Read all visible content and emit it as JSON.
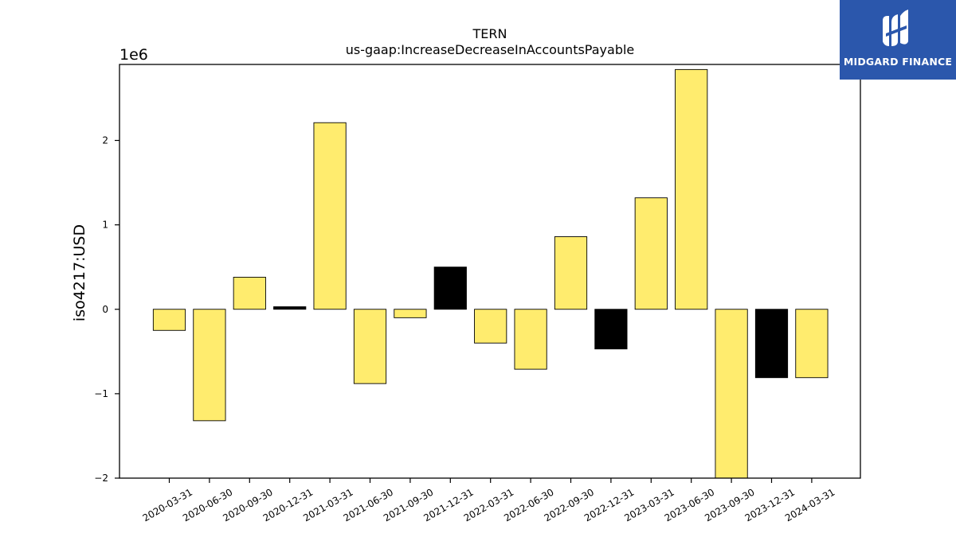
{
  "chart_data": {
    "type": "bar",
    "title": "TERN",
    "subtitle": "us-gaap:IncreaseDecreaseInAccountsPayable",
    "ylabel": "iso4217:USD",
    "y_scale_label": "1e6",
    "ylim": [
      -2.0,
      2.9
    ],
    "yticks": [
      -2,
      -1,
      0,
      1,
      2
    ],
    "ytick_labels": [
      "−2",
      "−1",
      "0",
      "1",
      "2"
    ],
    "grid": false,
    "categories": [
      "2020-03-31",
      "2020-06-30",
      "2020-09-30",
      "2020-12-31",
      "2021-03-31",
      "2021-06-30",
      "2021-09-30",
      "2021-12-31",
      "2022-03-31",
      "2022-06-30",
      "2022-09-30",
      "2022-12-31",
      "2023-03-31",
      "2023-06-30",
      "2023-09-30",
      "2023-12-31",
      "2024-03-31"
    ],
    "values": [
      -250000,
      -1320000,
      380000,
      30000,
      2210000,
      -880000,
      -100000,
      500000,
      -400000,
      -710000,
      860000,
      -470000,
      1320000,
      2840000,
      -2000000,
      -810000,
      -810000
    ],
    "bar_colors": [
      "#ffec6e",
      "#ffec6e",
      "#ffec6e",
      "#000000",
      "#ffec6e",
      "#ffec6e",
      "#ffec6e",
      "#000000",
      "#ffec6e",
      "#ffec6e",
      "#ffec6e",
      "#000000",
      "#ffec6e",
      "#ffec6e",
      "#ffec6e",
      "#000000",
      "#ffec6e"
    ]
  },
  "logo": {
    "text": "MIDGARD FINANCE",
    "background": "#2b57ac"
  }
}
